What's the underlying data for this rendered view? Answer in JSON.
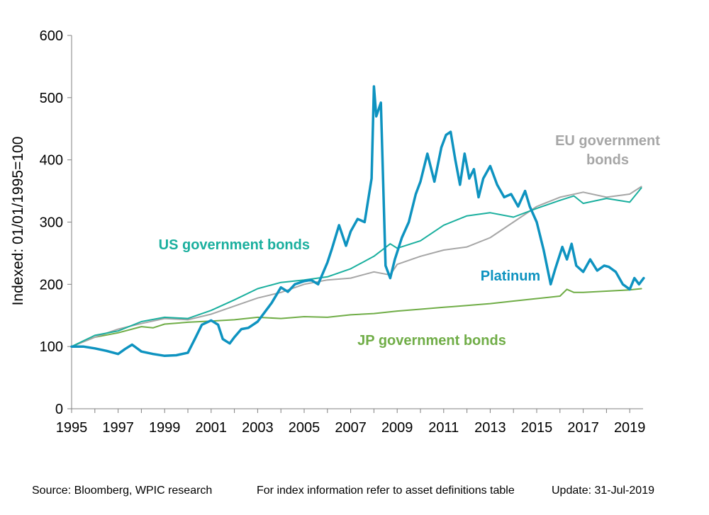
{
  "chart_data": {
    "type": "line",
    "ylabel": "Indexed: 01/01/1995=100",
    "xlim": [
      1995,
      2019.6
    ],
    "ylim": [
      0,
      600
    ],
    "yticks": [
      0,
      100,
      200,
      300,
      400,
      500,
      600
    ],
    "xticks": [
      1995,
      1997,
      1999,
      2001,
      2003,
      2005,
      2007,
      2009,
      2011,
      2013,
      2015,
      2017,
      2019
    ],
    "grid": false,
    "series": [
      {
        "name": "JP government bonds",
        "color": "#70ad47",
        "stroke_width": 2,
        "x": [
          1995,
          1996,
          1997,
          1998,
          1998.5,
          1999,
          2000,
          2001,
          2002,
          2003,
          2004,
          2005,
          2006,
          2007,
          2008,
          2009,
          2010,
          2011,
          2012,
          2013,
          2014,
          2015,
          2016,
          2016.3,
          2016.6,
          2017,
          2018,
          2019,
          2019.5
        ],
        "y": [
          100,
          115,
          122,
          132,
          130,
          136,
          139,
          141,
          143,
          147,
          145,
          148,
          147,
          151,
          153,
          157,
          160,
          163,
          166,
          169,
          173,
          177,
          181,
          192,
          187,
          187,
          189,
          191,
          193
        ]
      },
      {
        "name": "EU government bonds",
        "color": "#a6a6a6",
        "stroke_width": 2,
        "x": [
          1995,
          1996,
          1997,
          1998,
          1999,
          2000,
          2001,
          2002,
          2003,
          2004,
          2005,
          2006,
          2007,
          2008,
          2008.7,
          2009,
          2010,
          2011,
          2012,
          2013,
          2014,
          2015,
          2016,
          2017,
          2018,
          2019,
          2019.5
        ],
        "y": [
          100,
          115,
          128,
          137,
          145,
          143,
          152,
          165,
          178,
          187,
          200,
          207,
          210,
          220,
          215,
          232,
          245,
          255,
          260,
          275,
          300,
          325,
          340,
          348,
          340,
          345,
          357
        ]
      },
      {
        "name": "US government bonds",
        "color": "#1aaf9e",
        "stroke_width": 2,
        "x": [
          1995,
          1996,
          1997,
          1998,
          1999,
          2000,
          2001,
          2002,
          2003,
          2004,
          2005,
          2006,
          2007,
          2008,
          2008.7,
          2009,
          2010,
          2011,
          2012,
          2013,
          2014,
          2015,
          2016,
          2016.6,
          2017,
          2018,
          2019,
          2019.5
        ],
        "y": [
          100,
          118,
          125,
          140,
          147,
          145,
          158,
          175,
          193,
          203,
          207,
          212,
          225,
          245,
          265,
          258,
          270,
          295,
          310,
          315,
          308,
          322,
          335,
          342,
          330,
          338,
          332,
          355
        ]
      },
      {
        "name": "Platinum",
        "color": "#0e93c0",
        "stroke_width": 3.5,
        "x": [
          1995,
          1995.5,
          1996,
          1996.5,
          1997,
          1997.3,
          1997.6,
          1998,
          1998.5,
          1999,
          1999.5,
          2000,
          2000.3,
          2000.6,
          2001,
          2001.3,
          2001.5,
          2001.8,
          2002,
          2002.3,
          2002.6,
          2003,
          2003.3,
          2003.6,
          2004,
          2004.3,
          2004.6,
          2005,
          2005.3,
          2005.6,
          2006,
          2006.2,
          2006.5,
          2006.8,
          2007,
          2007.3,
          2007.6,
          2007.9,
          2008.0,
          2008.1,
          2008.3,
          2008.5,
          2008.7,
          2008.9,
          2009.2,
          2009.5,
          2009.8,
          2010,
          2010.3,
          2010.6,
          2010.9,
          2011.1,
          2011.3,
          2011.5,
          2011.7,
          2011.9,
          2012.1,
          2012.3,
          2012.5,
          2012.7,
          2013,
          2013.3,
          2013.6,
          2013.9,
          2014.2,
          2014.5,
          2014.7,
          2015,
          2015.3,
          2015.6,
          2015.8,
          2016.1,
          2016.3,
          2016.5,
          2016.7,
          2017,
          2017.3,
          2017.6,
          2017.9,
          2018.1,
          2018.4,
          2018.7,
          2019,
          2019.2,
          2019.4,
          2019.6
        ],
        "y": [
          100,
          100,
          97,
          93,
          88,
          96,
          103,
          92,
          88,
          85,
          86,
          90,
          112,
          135,
          142,
          135,
          112,
          105,
          115,
          128,
          130,
          140,
          155,
          170,
          195,
          188,
          200,
          205,
          207,
          200,
          235,
          258,
          295,
          262,
          285,
          305,
          300,
          370,
          518,
          470,
          492,
          230,
          210,
          240,
          275,
          300,
          345,
          365,
          410,
          365,
          420,
          440,
          445,
          400,
          360,
          410,
          370,
          385,
          340,
          370,
          390,
          360,
          340,
          345,
          325,
          350,
          325,
          300,
          255,
          200,
          225,
          260,
          240,
          265,
          230,
          220,
          240,
          222,
          230,
          228,
          220,
          200,
          192,
          210,
          200,
          210
        ]
      }
    ],
    "annotations": [
      {
        "text": "US government bonds",
        "color": "#1aaf9e",
        "x": 2005.5,
        "y": 283,
        "anchor": "end"
      },
      {
        "text": "EU government bonds",
        "color": "#a6a6a6",
        "x": 2013.5,
        "y": 411,
        "anchor": "middle",
        "line2": true
      },
      {
        "text": "Platinum",
        "color": "#0e93c0",
        "x": 2012.8,
        "y": 215,
        "anchor": "middle"
      },
      {
        "text": "JP government bonds",
        "color": "#70ad47",
        "x": 2011.2,
        "y": 106,
        "anchor": "middle"
      }
    ]
  },
  "labels": {
    "us": "US government bonds",
    "eu_line1": "EU government",
    "eu_line2": "bonds",
    "platinum": "Platinum",
    "jp": "JP government bonds"
  },
  "footer": {
    "source": "Source: Bloomberg, WPIC research",
    "note": "For index information refer to asset definitions table",
    "update": "Update: 31-Jul-2019"
  }
}
